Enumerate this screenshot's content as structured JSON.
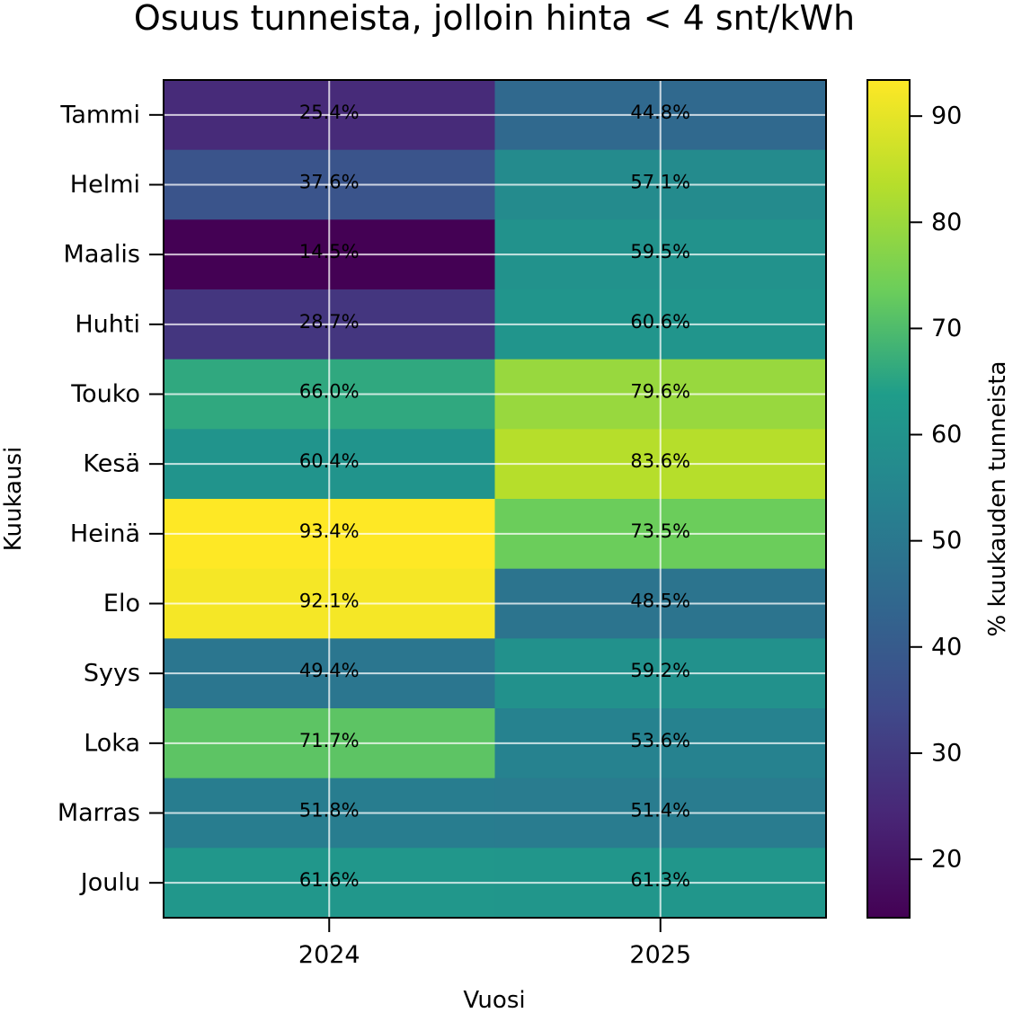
{
  "chart_data": {
    "type": "heatmap",
    "title": "Osuus tunneista, jolloin hinta < 4 snt/kWh",
    "xlabel": "Vuosi",
    "ylabel": "Kuukausi",
    "x_categories": [
      "2024",
      "2025"
    ],
    "y_categories": [
      "Tammi",
      "Helmi",
      "Maalis",
      "Huhti",
      "Touko",
      "Kesä",
      "Heinä",
      "Elo",
      "Syys",
      "Loka",
      "Marras",
      "Joulu"
    ],
    "values": [
      [
        25.4,
        44.8
      ],
      [
        37.6,
        57.1
      ],
      [
        14.5,
        59.5
      ],
      [
        28.7,
        60.6
      ],
      [
        66.0,
        79.6
      ],
      [
        60.4,
        83.6
      ],
      [
        93.4,
        73.5
      ],
      [
        92.1,
        48.5
      ],
      [
        49.4,
        59.2
      ],
      [
        71.7,
        53.6
      ],
      [
        51.8,
        51.4
      ],
      [
        61.6,
        61.3
      ]
    ],
    "cell_labels": [
      [
        "25.4%",
        "44.8%"
      ],
      [
        "37.6%",
        "57.1%"
      ],
      [
        "14.5%",
        "59.5%"
      ],
      [
        "28.7%",
        "60.6%"
      ],
      [
        "66.0%",
        "79.6%"
      ],
      [
        "60.4%",
        "83.6%"
      ],
      [
        "93.4%",
        "73.5%"
      ],
      [
        "92.1%",
        "48.5%"
      ],
      [
        "49.4%",
        "59.2%"
      ],
      [
        "71.7%",
        "53.6%"
      ],
      [
        "51.8%",
        "51.4%"
      ],
      [
        "61.6%",
        "61.3%"
      ]
    ],
    "colormap": "viridis",
    "vmin": 14.5,
    "vmax": 93.4,
    "colorbar": {
      "label": "% kuukauden tunneista",
      "ticks": [
        20,
        30,
        40,
        50,
        60,
        70,
        80,
        90
      ],
      "tick_labels": [
        "20",
        "30",
        "40",
        "50",
        "60",
        "70",
        "80",
        "90"
      ]
    },
    "grid": true
  }
}
